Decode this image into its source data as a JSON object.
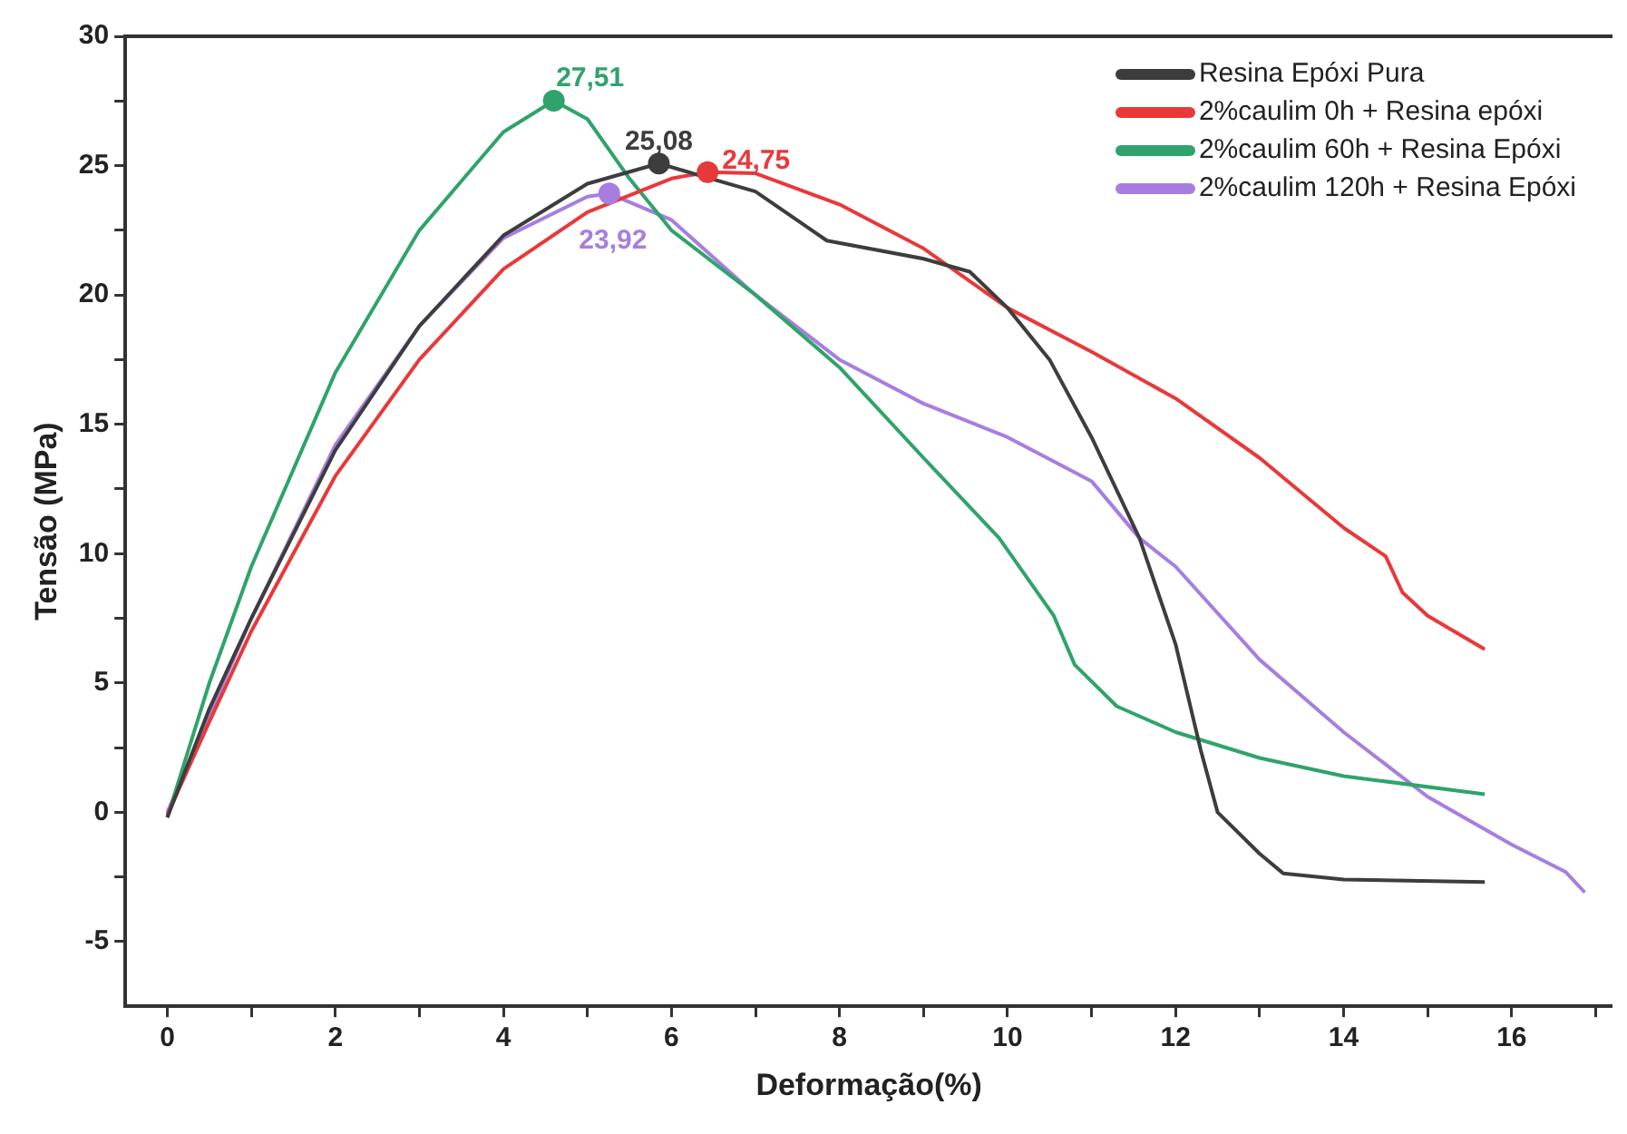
{
  "chart_data": {
    "type": "line",
    "xlabel": "Deformação(%)",
    "ylabel": "Tensão (MPa)",
    "xlim": [
      -0.5,
      17.2
    ],
    "ylim": [
      -7.5,
      30
    ],
    "xticks": [
      0,
      {
        "value": 1,
        "label": null
      },
      2,
      {
        "value": 3,
        "label": null
      },
      4,
      {
        "value": 5,
        "label": null
      },
      6,
      {
        "value": 7,
        "label": null
      },
      8,
      {
        "value": 9,
        "label": null
      },
      10,
      {
        "value": 11,
        "label": null
      },
      12,
      {
        "value": 13,
        "label": null
      },
      14,
      {
        "value": 15,
        "label": null
      },
      16,
      {
        "value": 17,
        "label": null
      }
    ],
    "yticks": [
      -5,
      {
        "value": -2.5,
        "label": null
      },
      0,
      {
        "value": 2.5,
        "label": null
      },
      5,
      {
        "value": 7.5,
        "label": null
      },
      10,
      {
        "value": 12.5,
        "label": null
      },
      15,
      {
        "value": 17.5,
        "label": null
      },
      20,
      {
        "value": 22.5,
        "label": null
      },
      25,
      {
        "value": 27.5,
        "label": null
      },
      30
    ],
    "grid": false,
    "legend": "top right",
    "marker": "none",
    "line_style": "solid",
    "series": [
      {
        "name": "Resina Epóxi Pura",
        "color": "#3d3d3d",
        "x": [
          0,
          0.5,
          1,
          2,
          3,
          4,
          5,
          5.85,
          7,
          7.85,
          9,
          9.55,
          10,
          10.5,
          11,
          11.57,
          12,
          12.3,
          12.5,
          13,
          13.28,
          14,
          15.68
        ],
        "values": [
          -0.2,
          4,
          7.5,
          14,
          18.8,
          22.3,
          24.3,
          25.08,
          24,
          22.1,
          21.4,
          20.9,
          19.5,
          17.5,
          14.5,
          10.6,
          6.5,
          2.4,
          0,
          -1.6,
          -2.36,
          -2.6,
          -2.7
        ]
      },
      {
        "name": "2%caulim 0h + Resina epóxi",
        "color": "#e8393a",
        "x": [
          0,
          0.5,
          1,
          2,
          3,
          4,
          5,
          6,
          6.43,
          7,
          8,
          9,
          10,
          11,
          12,
          13,
          14,
          14.5,
          14.7,
          15,
          15.68
        ],
        "values": [
          -0.1,
          3.5,
          7,
          13,
          17.5,
          21,
          23.2,
          24.5,
          24.75,
          24.7,
          23.5,
          21.8,
          19.5,
          17.8,
          16,
          13.7,
          11,
          9.9,
          8.5,
          7.6,
          6.3
        ]
      },
      {
        "name": "2%caulim 60h + Resina Epóxi",
        "color": "#2fa36b",
        "x": [
          0,
          0.5,
          1,
          2,
          3,
          4,
          4.6,
          5,
          5.5,
          6,
          7,
          8,
          9,
          9.9,
          10.55,
          10.8,
          11.3,
          12,
          13,
          14,
          15.68
        ],
        "values": [
          -0.2,
          5,
          9.5,
          17,
          22.5,
          26.3,
          27.51,
          26.8,
          24.5,
          22.5,
          20,
          17.2,
          13.7,
          10.6,
          7.6,
          5.7,
          4.1,
          3.1,
          2.1,
          1.4,
          0.7
        ]
      },
      {
        "name": "2%caulim 120h + Resina Epóxi",
        "color": "#a77ee0",
        "x": [
          0,
          1,
          2,
          3,
          4,
          5,
          5.26,
          6,
          7,
          8,
          9,
          10,
          11,
          11.57,
          12,
          13,
          14,
          15,
          16,
          16.64,
          16.87
        ],
        "values": [
          0,
          7.5,
          14.2,
          18.8,
          22.2,
          23.8,
          23.92,
          22.9,
          20,
          17.5,
          15.8,
          14.5,
          12.8,
          10.6,
          9.5,
          5.9,
          3.1,
          0.6,
          -1.25,
          -2.3,
          -3.1
        ]
      }
    ],
    "annotations": [
      {
        "text": "25,08",
        "x": 5.85,
        "y": 25.08
      },
      {
        "text": "24,75",
        "x": 6.43,
        "y": 24.75
      },
      {
        "text": "27,51",
        "x": 4.6,
        "y": 27.51
      },
      {
        "text": "23,92",
        "x": 5.26,
        "y": 23.92
      }
    ]
  }
}
